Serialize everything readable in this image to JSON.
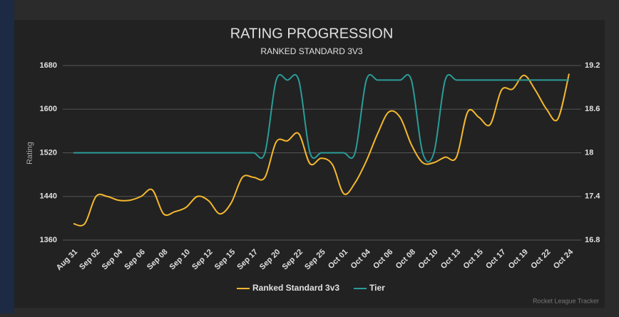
{
  "chart_data": {
    "type": "line",
    "title": "RATING PROGRESSION",
    "subtitle": "RANKED STANDARD 3V3",
    "y_label": "Rating",
    "credit": "Rocket League Tracker",
    "categories": [
      "Aug 31",
      null,
      "Sep 02",
      null,
      "Sep 04",
      null,
      "Sep 06",
      null,
      "Sep 08",
      null,
      "Sep 10",
      null,
      "Sep 12",
      null,
      "Sep 15",
      null,
      "Sep 17",
      null,
      "Sep 20",
      null,
      "Sep 22",
      null,
      "Sep 25",
      null,
      "Oct 01",
      null,
      "Oct 04",
      null,
      "Oct 06",
      null,
      "Oct 08",
      null,
      "Oct 10",
      null,
      "Oct 13",
      null,
      "Oct 15",
      null,
      "Oct 17",
      null,
      "Oct 19",
      null,
      "Oct 22",
      null,
      "Oct 24"
    ],
    "series": [
      {
        "name": "Ranked Standard 3v3",
        "color": "#f5b82e",
        "axis": "y",
        "values": [
          1390,
          1390,
          1440,
          1440,
          1433,
          1433,
          1440,
          1452,
          1408,
          1412,
          1420,
          1440,
          1432,
          1408,
          1428,
          1475,
          1475,
          1475,
          1540,
          1542,
          1555,
          1500,
          1510,
          1498,
          1445,
          1465,
          1505,
          1555,
          1595,
          1585,
          1535,
          1502,
          1502,
          1512,
          1512,
          1595,
          1585,
          1572,
          1635,
          1637,
          1662,
          1635,
          1600,
          1582,
          1665
        ]
      },
      {
        "name": "Tier",
        "color": "#2a9d9a",
        "axis": "y2",
        "values": [
          18,
          18,
          18,
          18,
          18,
          18,
          18,
          18,
          18,
          18,
          18,
          18,
          18,
          18,
          18,
          18,
          18,
          18,
          19,
          19,
          19,
          18,
          18,
          18,
          18,
          18,
          19,
          19,
          19,
          19,
          19,
          18,
          18,
          19,
          19,
          19,
          19,
          19,
          19,
          19,
          19,
          19,
          19,
          19,
          19
        ]
      }
    ],
    "ylim": [
      1360,
      1680
    ],
    "yticks": [
      1360,
      1440,
      1520,
      1600,
      1680
    ],
    "y2lim": [
      16.8,
      19.2
    ],
    "y2ticks": [
      16.8,
      17.4,
      18,
      18.6,
      19.2
    ],
    "grid": true
  }
}
